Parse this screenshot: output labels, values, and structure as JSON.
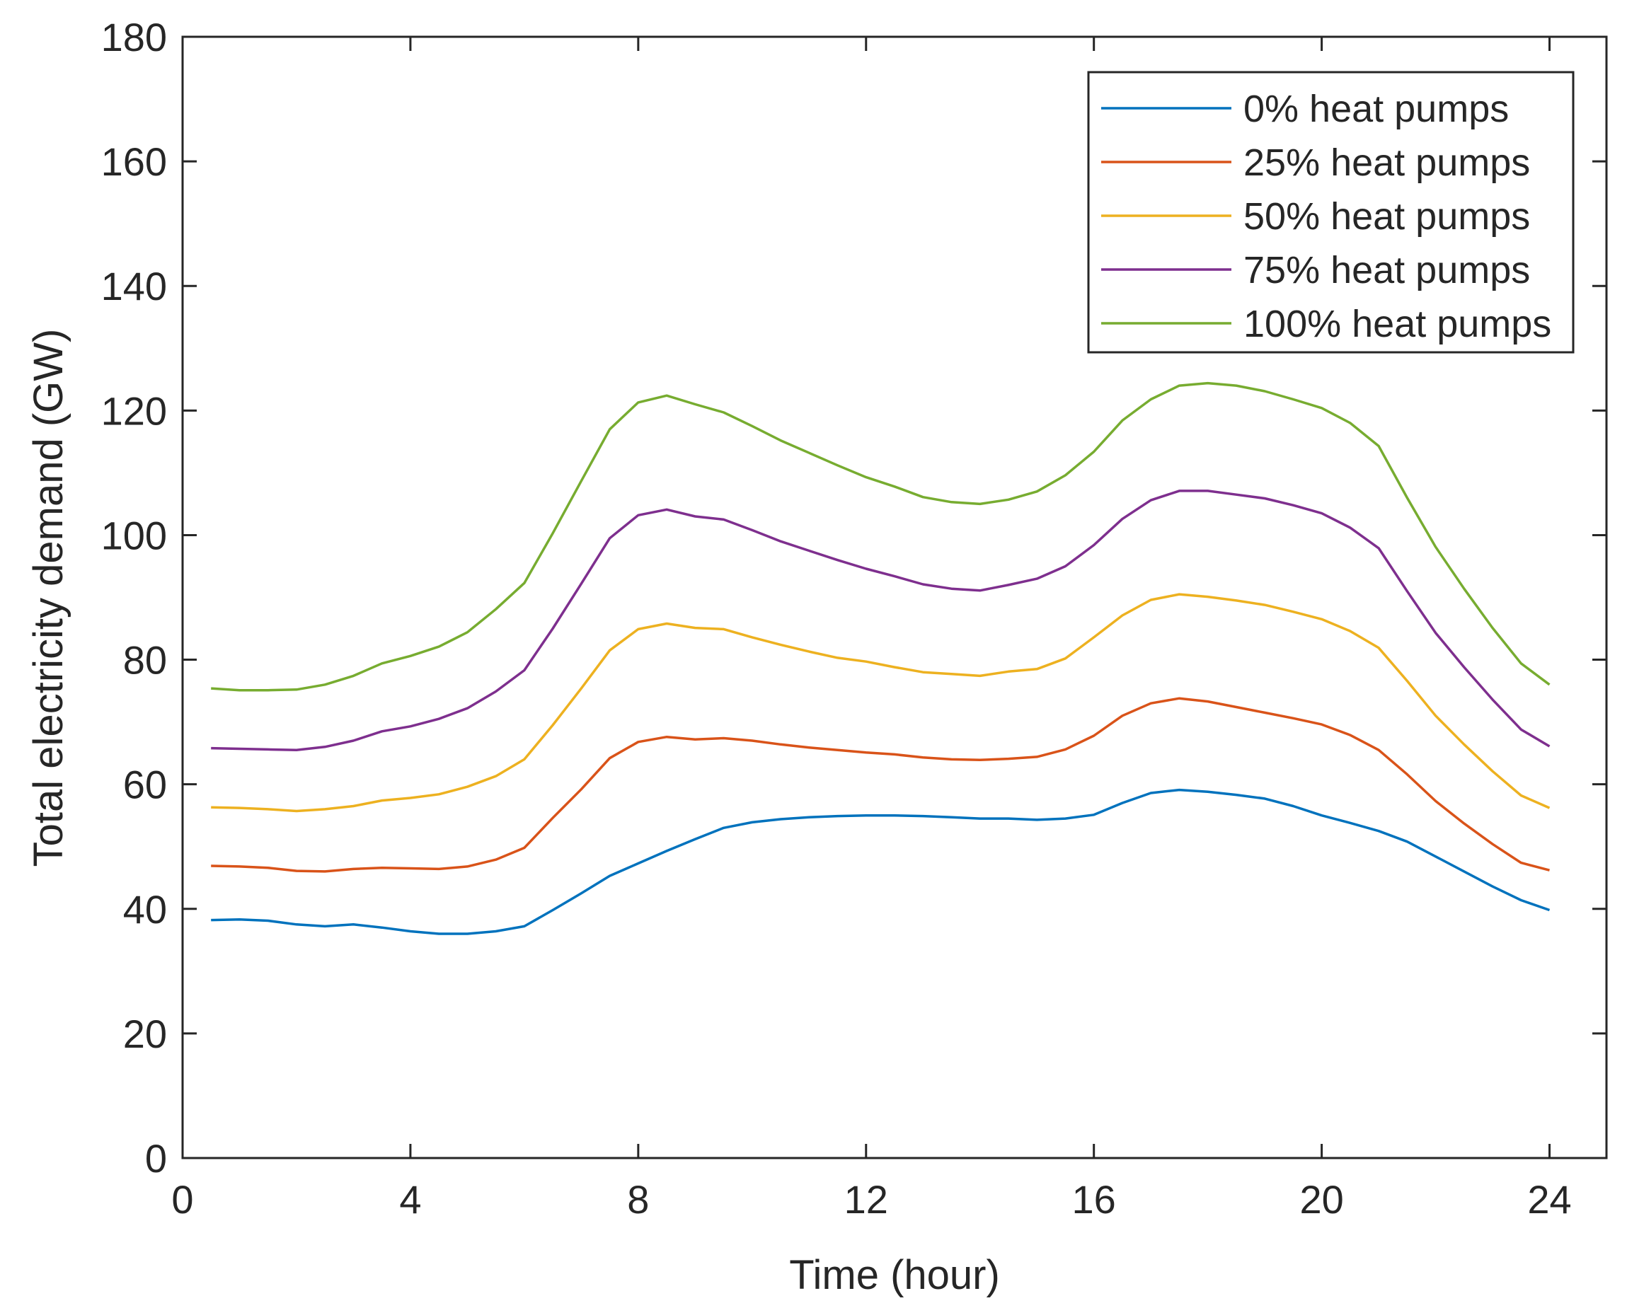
{
  "chart_data": {
    "type": "line",
    "title": "",
    "xlabel": "Time (hour)",
    "ylabel": "Total electricity demand (GW)",
    "xlim": [
      0,
      25
    ],
    "ylim": [
      0,
      180
    ],
    "xticks": [
      0,
      4,
      8,
      12,
      16,
      20,
      24
    ],
    "yticks": [
      0,
      20,
      40,
      60,
      80,
      100,
      120,
      140,
      160,
      180
    ],
    "grid": false,
    "legend_position": "top-right",
    "x": [
      0.5,
      1,
      1.5,
      2,
      2.5,
      3,
      3.5,
      4,
      4.5,
      5,
      5.5,
      6,
      6.5,
      7,
      7.5,
      8,
      8.5,
      9,
      9.5,
      10,
      10.5,
      11,
      11.5,
      12,
      12.5,
      13,
      13.5,
      14,
      14.5,
      15,
      15.5,
      16,
      16.5,
      17,
      17.5,
      18,
      18.5,
      19,
      19.5,
      20,
      20.5,
      21,
      21.5,
      22,
      22.5,
      23,
      23.5,
      24
    ],
    "series": [
      {
        "name": "0% heat pumps",
        "color": "#0072BD",
        "values": [
          38.2,
          38.3,
          38.1,
          37.5,
          37.2,
          37.5,
          37.0,
          36.4,
          36.0,
          36.0,
          36.4,
          37.2,
          39.8,
          42.5,
          45.3,
          47.3,
          49.3,
          51.2,
          53.0,
          53.9,
          54.4,
          54.7,
          54.9,
          55.0,
          55.0,
          54.9,
          54.7,
          54.5,
          54.5,
          54.3,
          54.5,
          55.1,
          57.0,
          58.6,
          59.1,
          58.8,
          58.3,
          57.7,
          56.5,
          55.0,
          53.8,
          52.5,
          50.8,
          48.4,
          46.0,
          43.6,
          41.4,
          39.8
        ]
      },
      {
        "name": "25% heat pumps",
        "color": "#D95319",
        "values": [
          46.9,
          46.8,
          46.6,
          46.1,
          46.0,
          46.4,
          46.6,
          46.5,
          46.4,
          46.8,
          47.9,
          49.8,
          54.6,
          59.2,
          64.2,
          66.8,
          67.6,
          67.2,
          67.4,
          67.0,
          66.4,
          65.9,
          65.5,
          65.1,
          64.8,
          64.3,
          64.0,
          63.9,
          64.1,
          64.4,
          65.6,
          67.8,
          71.0,
          73.0,
          73.8,
          73.3,
          72.4,
          71.5,
          70.6,
          69.6,
          67.9,
          65.5,
          61.6,
          57.3,
          53.7,
          50.4,
          47.4,
          46.2
        ]
      },
      {
        "name": "50% heat pumps",
        "color": "#EDB120",
        "values": [
          56.3,
          56.2,
          56.0,
          55.7,
          56.0,
          56.5,
          57.4,
          57.8,
          58.4,
          59.6,
          61.3,
          64.0,
          69.5,
          75.4,
          81.5,
          84.9,
          85.8,
          85.1,
          84.9,
          83.6,
          82.4,
          81.3,
          80.3,
          79.7,
          78.8,
          78.0,
          77.7,
          77.4,
          78.1,
          78.5,
          80.2,
          83.6,
          87.1,
          89.6,
          90.5,
          90.1,
          89.5,
          88.8,
          87.7,
          86.5,
          84.6,
          81.9,
          76.6,
          71.0,
          66.4,
          62.1,
          58.2,
          56.2
        ]
      },
      {
        "name": "75% heat pumps",
        "color": "#7E2F8E",
        "values": [
          65.8,
          65.7,
          65.6,
          65.5,
          66.0,
          67.0,
          68.5,
          69.3,
          70.5,
          72.2,
          74.9,
          78.3,
          85.0,
          92.2,
          99.5,
          103.2,
          104.1,
          103.0,
          102.5,
          100.8,
          99.0,
          97.5,
          96.0,
          94.6,
          93.4,
          92.1,
          91.4,
          91.1,
          92.0,
          93.0,
          95.0,
          98.4,
          102.6,
          105.6,
          107.1,
          107.1,
          106.5,
          105.9,
          104.8,
          103.5,
          101.2,
          97.9,
          91.0,
          84.3,
          78.8,
          73.6,
          68.8,
          66.1
        ]
      },
      {
        "name": "100% heat pumps",
        "color": "#77AC30",
        "values": [
          75.4,
          75.1,
          75.1,
          75.2,
          76.0,
          77.4,
          79.4,
          80.6,
          82.1,
          84.4,
          88.1,
          92.3,
          100.3,
          108.7,
          117.0,
          121.3,
          122.4,
          121.0,
          119.7,
          117.5,
          115.2,
          113.2,
          111.2,
          109.3,
          107.8,
          106.1,
          105.3,
          105.0,
          105.7,
          107.0,
          109.6,
          113.4,
          118.4,
          121.8,
          124.0,
          124.4,
          124.0,
          123.1,
          121.8,
          120.4,
          118.0,
          114.3,
          106.0,
          98.1,
          91.4,
          85.1,
          79.4,
          76.0
        ]
      }
    ]
  }
}
